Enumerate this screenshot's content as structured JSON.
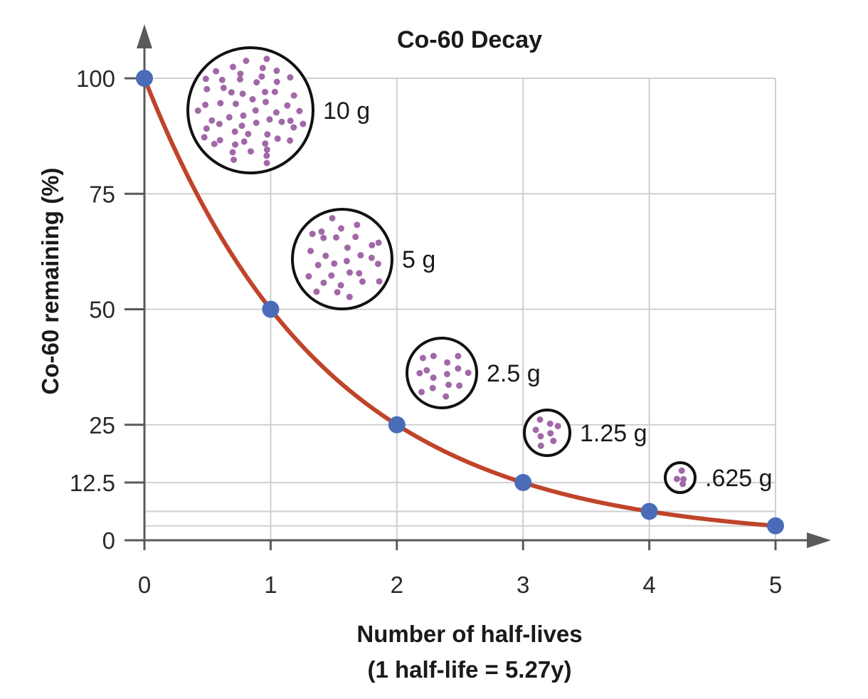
{
  "chart_data": {
    "type": "line",
    "title": "Co-60 Decay",
    "xlabel": "Number of half-lives",
    "xlabel_note": "(1 half-life = 5.27y)",
    "ylabel": "Co-60 remaining (%)",
    "x": [
      0,
      1,
      2,
      3,
      4,
      5
    ],
    "series": [
      {
        "values": [
          100,
          50,
          25,
          12.5,
          6.25,
          3.125
        ]
      }
    ],
    "xlim": [
      0,
      5
    ],
    "ylim": [
      0,
      100
    ],
    "xticks": [
      "0",
      "1",
      "2",
      "3",
      "4",
      "5"
    ],
    "yticks": [
      {
        "value": 0,
        "label": "0"
      },
      {
        "value": 12.5,
        "label": "12.5"
      },
      {
        "value": 25,
        "label": "25"
      },
      {
        "value": 50,
        "label": "50"
      },
      {
        "value": 75,
        "label": "75"
      },
      {
        "value": 100,
        "label": "100"
      }
    ],
    "extra_gridlines_y": [
      6.25,
      3.125
    ],
    "grid": true,
    "annotations": [
      {
        "label": "10 g",
        "mass": 10
      },
      {
        "label": "5 g",
        "mass": 5
      },
      {
        "label": "2.5 g",
        "mass": 2.5
      },
      {
        "label": "1.25 g",
        "mass": 1.25
      },
      {
        "label": ".625 g",
        "mass": 0.625
      }
    ],
    "colors": {
      "curve": "#c0442a",
      "point": "#4a6bb8",
      "dot": "#a168a8",
      "grid": "#cfcfcf",
      "axis": "#5a5a5a"
    }
  }
}
